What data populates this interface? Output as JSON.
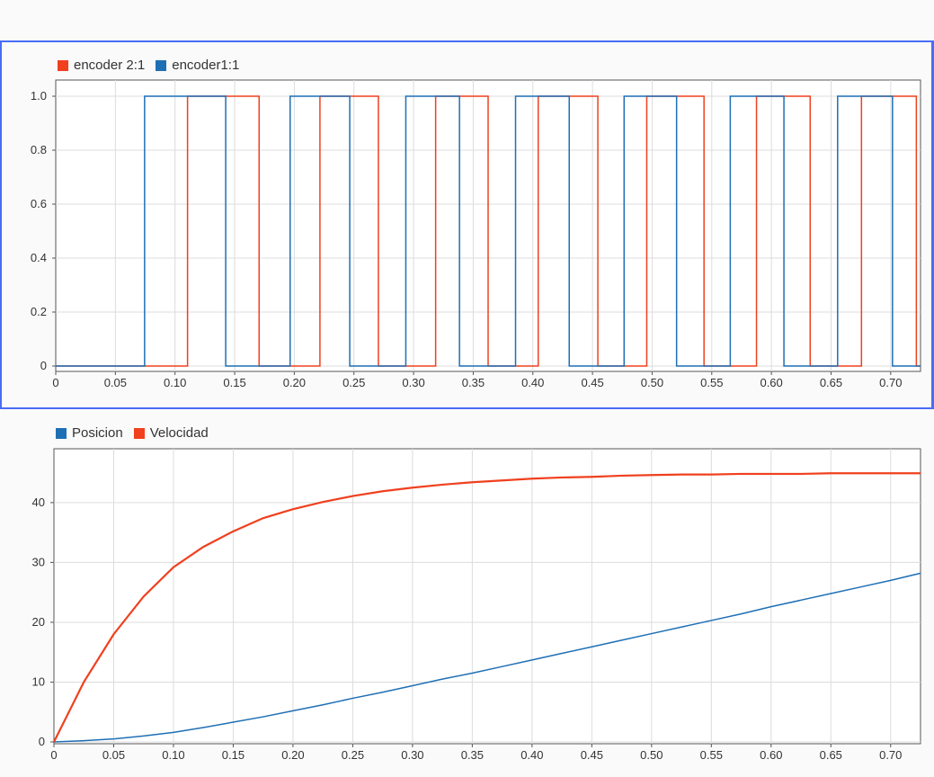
{
  "chart_data": [
    {
      "type": "line",
      "title": "",
      "xlabel": "",
      "ylabel": "",
      "xlim": [
        0,
        0.725
      ],
      "ylim": [
        -0.02,
        1.06
      ],
      "x_ticks": [
        "0",
        "0.05",
        "0.10",
        "0.15",
        "0.20",
        "0.25",
        "0.30",
        "0.35",
        "0.40",
        "0.45",
        "0.50",
        "0.55",
        "0.60",
        "0.65",
        "0.70"
      ],
      "y_ticks": [
        "0",
        "0.2",
        "0.4",
        "0.6",
        "0.8",
        "1.0"
      ],
      "grid": true,
      "legend_position": "top-left",
      "series": [
        {
          "name": "encoder 2:1",
          "color": "#f0401e",
          "step_x": [
            0,
            0.1105,
            0.1705,
            0.2215,
            0.2705,
            0.3185,
            0.3625,
            0.4045,
            0.4545,
            0.4955,
            0.5435,
            0.5875,
            0.6325,
            0.6755,
            0.7215,
            0.725
          ],
          "step_y": [
            0,
            1,
            0,
            1,
            0,
            1,
            0,
            1,
            0,
            1,
            0,
            1,
            0,
            1,
            0,
            0
          ]
        },
        {
          "name": "encoder1:1",
          "color": "#1f6fb5",
          "step_x": [
            0,
            0.0745,
            0.1425,
            0.1965,
            0.2465,
            0.2935,
            0.3385,
            0.3855,
            0.4305,
            0.4765,
            0.5205,
            0.5655,
            0.6105,
            0.6555,
            0.7015,
            0.725
          ],
          "step_y": [
            0,
            1,
            0,
            1,
            0,
            1,
            0,
            1,
            0,
            1,
            0,
            1,
            0,
            1,
            0,
            0
          ]
        }
      ]
    },
    {
      "type": "line",
      "title": "",
      "xlabel": "",
      "ylabel": "",
      "xlim": [
        0,
        0.725
      ],
      "ylim": [
        -0.3,
        49
      ],
      "x_ticks": [
        "0",
        "0.05",
        "0.10",
        "0.15",
        "0.20",
        "0.25",
        "0.30",
        "0.35",
        "0.40",
        "0.45",
        "0.50",
        "0.55",
        "0.60",
        "0.65",
        "0.70"
      ],
      "y_ticks": [
        "0",
        "10",
        "20",
        "30",
        "40"
      ],
      "grid": true,
      "legend_position": "top-left",
      "series": [
        {
          "name": "Posicion",
          "color": "#1f6fb5",
          "x": [
            0,
            0.025,
            0.05,
            0.075,
            0.1,
            0.125,
            0.15,
            0.175,
            0.2,
            0.225,
            0.25,
            0.275,
            0.3,
            0.325,
            0.35,
            0.375,
            0.4,
            0.425,
            0.45,
            0.475,
            0.5,
            0.525,
            0.55,
            0.575,
            0.6,
            0.625,
            0.65,
            0.675,
            0.7,
            0.725
          ],
          "y": [
            0,
            0.2,
            0.5,
            1.0,
            1.6,
            2.4,
            3.3,
            4.2,
            5.2,
            6.2,
            7.3,
            8.3,
            9.4,
            10.5,
            11.5,
            12.6,
            13.7,
            14.8,
            15.9,
            17.0,
            18.1,
            19.2,
            20.3,
            21.4,
            22.6,
            23.7,
            24.8,
            25.9,
            27.0,
            28.2
          ]
        },
        {
          "name": "Velocidad",
          "color": "#f0401e",
          "x": [
            0,
            0.025,
            0.05,
            0.075,
            0.1,
            0.125,
            0.15,
            0.175,
            0.2,
            0.225,
            0.25,
            0.275,
            0.3,
            0.325,
            0.35,
            0.375,
            0.4,
            0.425,
            0.45,
            0.475,
            0.5,
            0.525,
            0.55,
            0.575,
            0.6,
            0.625,
            0.65,
            0.675,
            0.7,
            0.725
          ],
          "y": [
            0,
            10.0,
            18.0,
            24.3,
            29.2,
            32.6,
            35.2,
            37.4,
            38.9,
            40.1,
            41.1,
            41.9,
            42.5,
            43.0,
            43.4,
            43.7,
            44.0,
            44.2,
            44.3,
            44.5,
            44.6,
            44.7,
            44.7,
            44.8,
            44.8,
            44.8,
            44.9,
            44.9,
            44.9,
            44.9
          ]
        }
      ]
    }
  ]
}
